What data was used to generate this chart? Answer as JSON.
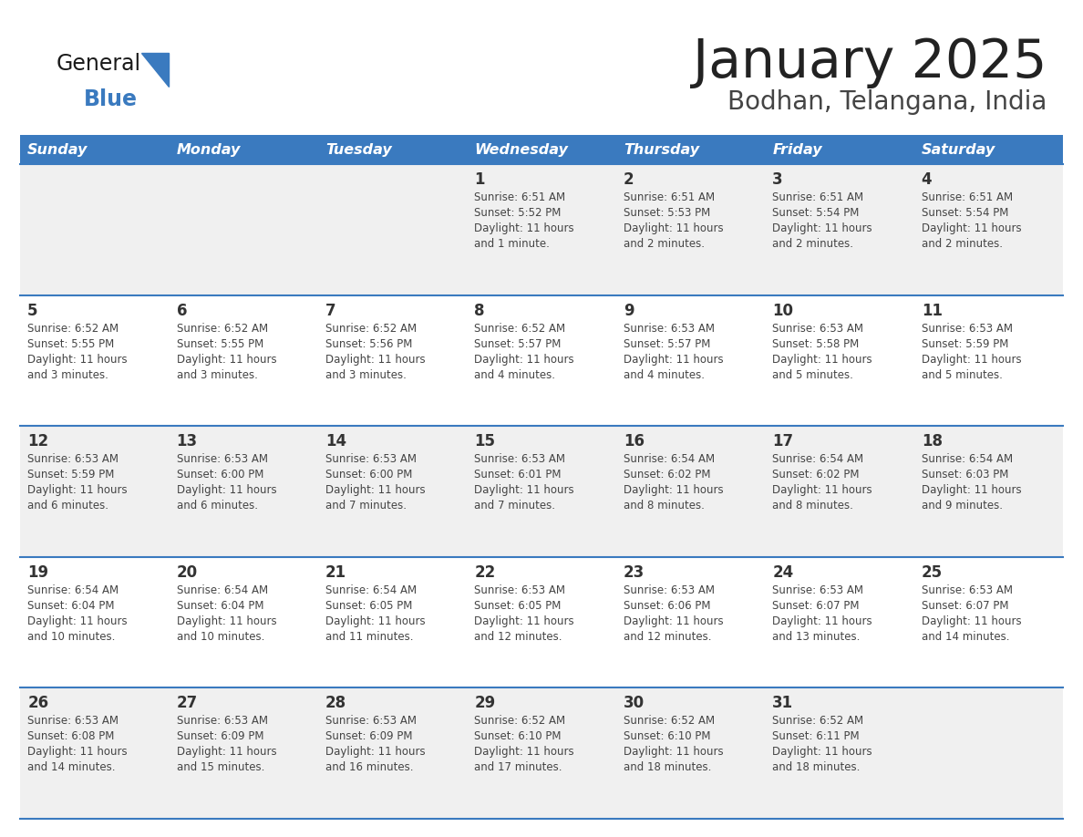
{
  "title": "January 2025",
  "subtitle": "Bodhan, Telangana, India",
  "days_of_week": [
    "Sunday",
    "Monday",
    "Tuesday",
    "Wednesday",
    "Thursday",
    "Friday",
    "Saturday"
  ],
  "header_bg": "#3a7abf",
  "header_text": "#ffffff",
  "row_bg_odd": "#f0f0f0",
  "row_bg_even": "#ffffff",
  "divider_color": "#3a7abf",
  "day_number_color": "#333333",
  "cell_text_color": "#444444",
  "title_color": "#222222",
  "subtitle_color": "#444444",
  "logo_general_color": "#1a1a1a",
  "logo_blue_color": "#3a7abf",
  "logo_triangle_color": "#3a7abf",
  "calendar_data": [
    [
      {
        "day": null,
        "sunrise": null,
        "sunset": null,
        "daylight": null
      },
      {
        "day": null,
        "sunrise": null,
        "sunset": null,
        "daylight": null
      },
      {
        "day": null,
        "sunrise": null,
        "sunset": null,
        "daylight": null
      },
      {
        "day": 1,
        "sunrise": "6:51 AM",
        "sunset": "5:52 PM",
        "daylight": "11 hours\nand 1 minute."
      },
      {
        "day": 2,
        "sunrise": "6:51 AM",
        "sunset": "5:53 PM",
        "daylight": "11 hours\nand 2 minutes."
      },
      {
        "day": 3,
        "sunrise": "6:51 AM",
        "sunset": "5:54 PM",
        "daylight": "11 hours\nand 2 minutes."
      },
      {
        "day": 4,
        "sunrise": "6:51 AM",
        "sunset": "5:54 PM",
        "daylight": "11 hours\nand 2 minutes."
      }
    ],
    [
      {
        "day": 5,
        "sunrise": "6:52 AM",
        "sunset": "5:55 PM",
        "daylight": "11 hours\nand 3 minutes."
      },
      {
        "day": 6,
        "sunrise": "6:52 AM",
        "sunset": "5:55 PM",
        "daylight": "11 hours\nand 3 minutes."
      },
      {
        "day": 7,
        "sunrise": "6:52 AM",
        "sunset": "5:56 PM",
        "daylight": "11 hours\nand 3 minutes."
      },
      {
        "day": 8,
        "sunrise": "6:52 AM",
        "sunset": "5:57 PM",
        "daylight": "11 hours\nand 4 minutes."
      },
      {
        "day": 9,
        "sunrise": "6:53 AM",
        "sunset": "5:57 PM",
        "daylight": "11 hours\nand 4 minutes."
      },
      {
        "day": 10,
        "sunrise": "6:53 AM",
        "sunset": "5:58 PM",
        "daylight": "11 hours\nand 5 minutes."
      },
      {
        "day": 11,
        "sunrise": "6:53 AM",
        "sunset": "5:59 PM",
        "daylight": "11 hours\nand 5 minutes."
      }
    ],
    [
      {
        "day": 12,
        "sunrise": "6:53 AM",
        "sunset": "5:59 PM",
        "daylight": "11 hours\nand 6 minutes."
      },
      {
        "day": 13,
        "sunrise": "6:53 AM",
        "sunset": "6:00 PM",
        "daylight": "11 hours\nand 6 minutes."
      },
      {
        "day": 14,
        "sunrise": "6:53 AM",
        "sunset": "6:00 PM",
        "daylight": "11 hours\nand 7 minutes."
      },
      {
        "day": 15,
        "sunrise": "6:53 AM",
        "sunset": "6:01 PM",
        "daylight": "11 hours\nand 7 minutes."
      },
      {
        "day": 16,
        "sunrise": "6:54 AM",
        "sunset": "6:02 PM",
        "daylight": "11 hours\nand 8 minutes."
      },
      {
        "day": 17,
        "sunrise": "6:54 AM",
        "sunset": "6:02 PM",
        "daylight": "11 hours\nand 8 minutes."
      },
      {
        "day": 18,
        "sunrise": "6:54 AM",
        "sunset": "6:03 PM",
        "daylight": "11 hours\nand 9 minutes."
      }
    ],
    [
      {
        "day": 19,
        "sunrise": "6:54 AM",
        "sunset": "6:04 PM",
        "daylight": "11 hours\nand 10 minutes."
      },
      {
        "day": 20,
        "sunrise": "6:54 AM",
        "sunset": "6:04 PM",
        "daylight": "11 hours\nand 10 minutes."
      },
      {
        "day": 21,
        "sunrise": "6:54 AM",
        "sunset": "6:05 PM",
        "daylight": "11 hours\nand 11 minutes."
      },
      {
        "day": 22,
        "sunrise": "6:53 AM",
        "sunset": "6:05 PM",
        "daylight": "11 hours\nand 12 minutes."
      },
      {
        "day": 23,
        "sunrise": "6:53 AM",
        "sunset": "6:06 PM",
        "daylight": "11 hours\nand 12 minutes."
      },
      {
        "day": 24,
        "sunrise": "6:53 AM",
        "sunset": "6:07 PM",
        "daylight": "11 hours\nand 13 minutes."
      },
      {
        "day": 25,
        "sunrise": "6:53 AM",
        "sunset": "6:07 PM",
        "daylight": "11 hours\nand 14 minutes."
      }
    ],
    [
      {
        "day": 26,
        "sunrise": "6:53 AM",
        "sunset": "6:08 PM",
        "daylight": "11 hours\nand 14 minutes."
      },
      {
        "day": 27,
        "sunrise": "6:53 AM",
        "sunset": "6:09 PM",
        "daylight": "11 hours\nand 15 minutes."
      },
      {
        "day": 28,
        "sunrise": "6:53 AM",
        "sunset": "6:09 PM",
        "daylight": "11 hours\nand 16 minutes."
      },
      {
        "day": 29,
        "sunrise": "6:52 AM",
        "sunset": "6:10 PM",
        "daylight": "11 hours\nand 17 minutes."
      },
      {
        "day": 30,
        "sunrise": "6:52 AM",
        "sunset": "6:10 PM",
        "daylight": "11 hours\nand 18 minutes."
      },
      {
        "day": 31,
        "sunrise": "6:52 AM",
        "sunset": "6:11 PM",
        "daylight": "11 hours\nand 18 minutes."
      },
      {
        "day": null,
        "sunrise": null,
        "sunset": null,
        "daylight": null
      }
    ]
  ]
}
